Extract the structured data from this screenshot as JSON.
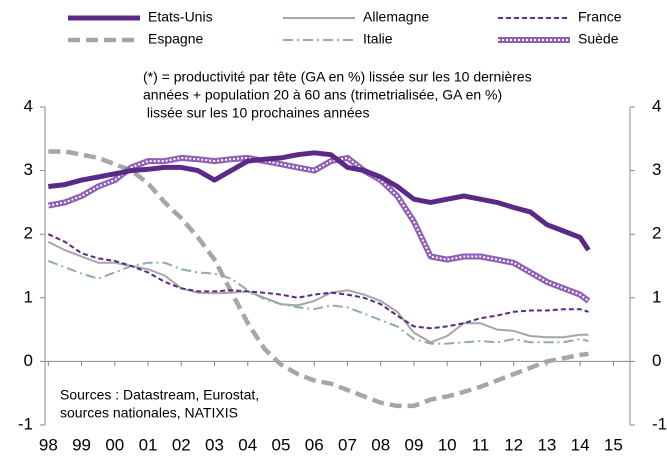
{
  "chart_data": {
    "type": "line",
    "annotation": [
      "(*) = productivité par tête (GA en %) lissée sur les 10 dernières",
      "années + population 20 à 60 ans (trimetrialisée, GA en %)",
      " lissée sur les 10 prochaines années"
    ],
    "source": [
      "Sources : Datastream, Eurostat,",
      "sources nationales, NATIXIS"
    ],
    "x": [
      1998,
      1998.5,
      1999,
      1999.5,
      2000,
      2000.5,
      2001,
      2001.5,
      2002,
      2002.5,
      2003,
      2003.5,
      2004,
      2004.5,
      2005,
      2005.5,
      2006,
      2006.5,
      2007,
      2007.5,
      2008,
      2008.5,
      2009,
      2009.5,
      2010,
      2010.5,
      2011,
      2011.5,
      2012,
      2012.5,
      2013,
      2013.5,
      2014,
      2014.25
    ],
    "series": [
      {
        "name": "Etats-Unis",
        "color": "#5b2a86",
        "style": "thick",
        "values": [
          2.75,
          2.78,
          2.85,
          2.9,
          2.95,
          3.0,
          3.02,
          3.05,
          3.05,
          3.0,
          2.85,
          3.0,
          3.15,
          3.18,
          3.2,
          3.25,
          3.28,
          3.25,
          3.05,
          3.0,
          2.9,
          2.75,
          2.55,
          2.5,
          2.55,
          2.6,
          2.55,
          2.5,
          2.42,
          2.35,
          2.15,
          2.05,
          1.95,
          1.75
        ]
      },
      {
        "name": "Allemagne",
        "color": "#a6a6a6",
        "style": "solid",
        "values": [
          1.88,
          1.75,
          1.65,
          1.55,
          1.55,
          1.5,
          1.45,
          1.35,
          1.15,
          1.08,
          1.07,
          1.08,
          1.1,
          1.0,
          0.9,
          0.88,
          0.95,
          1.08,
          1.12,
          1.05,
          0.95,
          0.78,
          0.45,
          0.3,
          0.4,
          0.6,
          0.6,
          0.5,
          0.48,
          0.4,
          0.38,
          0.38,
          0.42,
          0.42
        ]
      },
      {
        "name": "France",
        "color": "#5b2a86",
        "style": "dashed",
        "values": [
          2.0,
          1.88,
          1.7,
          1.62,
          1.58,
          1.5,
          1.4,
          1.25,
          1.15,
          1.1,
          1.1,
          1.12,
          1.1,
          1.08,
          1.05,
          1.0,
          1.05,
          1.08,
          1.05,
          1.0,
          0.9,
          0.72,
          0.55,
          0.52,
          0.55,
          0.6,
          0.68,
          0.72,
          0.78,
          0.8,
          0.8,
          0.82,
          0.82,
          0.78
        ]
      },
      {
        "name": "Espagne",
        "color": "#a6a6a6",
        "style": "thick-dashed",
        "values": [
          3.3,
          3.3,
          3.25,
          3.2,
          3.1,
          3.0,
          2.8,
          2.5,
          2.25,
          1.95,
          1.6,
          1.1,
          0.6,
          0.2,
          -0.05,
          -0.2,
          -0.3,
          -0.35,
          -0.45,
          -0.55,
          -0.65,
          -0.7,
          -0.7,
          -0.6,
          -0.55,
          -0.48,
          -0.4,
          -0.3,
          -0.2,
          -0.1,
          0.0,
          0.05,
          0.1,
          0.12
        ]
      },
      {
        "name": "Italie",
        "color": "#8fa9bb",
        "style": "dashdot",
        "values": [
          1.58,
          1.48,
          1.38,
          1.3,
          1.4,
          1.5,
          1.55,
          1.55,
          1.45,
          1.4,
          1.38,
          1.3,
          1.12,
          0.98,
          0.9,
          0.85,
          0.82,
          0.88,
          0.85,
          0.75,
          0.65,
          0.55,
          0.35,
          0.28,
          0.28,
          0.3,
          0.32,
          0.3,
          0.35,
          0.3,
          0.3,
          0.3,
          0.35,
          0.32
        ]
      },
      {
        "name": "Suède",
        "color": "#8e5fb5",
        "style": "hatched",
        "values": [
          2.45,
          2.5,
          2.6,
          2.75,
          2.85,
          3.05,
          3.15,
          3.15,
          3.2,
          3.18,
          3.15,
          3.18,
          3.2,
          3.15,
          3.1,
          3.05,
          3.0,
          3.15,
          3.2,
          3.0,
          2.85,
          2.6,
          2.2,
          1.65,
          1.6,
          1.65,
          1.65,
          1.6,
          1.55,
          1.4,
          1.25,
          1.15,
          1.05,
          0.95
        ]
      }
    ],
    "xlim": [
      1997.9,
      2015.5
    ],
    "xticks": [
      {
        "value": 1998,
        "label": "98"
      },
      {
        "value": 1999,
        "label": "99"
      },
      {
        "value": 2000,
        "label": "00"
      },
      {
        "value": 2001,
        "label": "01"
      },
      {
        "value": 2002,
        "label": "02"
      },
      {
        "value": 2003,
        "label": "03"
      },
      {
        "value": 2004,
        "label": "04"
      },
      {
        "value": 2005,
        "label": "05"
      },
      {
        "value": 2006,
        "label": "06"
      },
      {
        "value": 2007,
        "label": "07"
      },
      {
        "value": 2008,
        "label": "08"
      },
      {
        "value": 2009,
        "label": "09"
      },
      {
        "value": 2010,
        "label": "10"
      },
      {
        "value": 2011,
        "label": "11"
      },
      {
        "value": 2012,
        "label": "12"
      },
      {
        "value": 2013,
        "label": "13"
      },
      {
        "value": 2014,
        "label": "14"
      },
      {
        "value": 2015,
        "label": "15"
      }
    ],
    "ylim": [
      -1,
      4
    ],
    "yticks": [
      -1,
      0,
      1,
      2,
      3,
      4
    ],
    "y2lim": [
      -1,
      4
    ],
    "y2ticks": [
      -1,
      0,
      1,
      2,
      3,
      4
    ]
  }
}
